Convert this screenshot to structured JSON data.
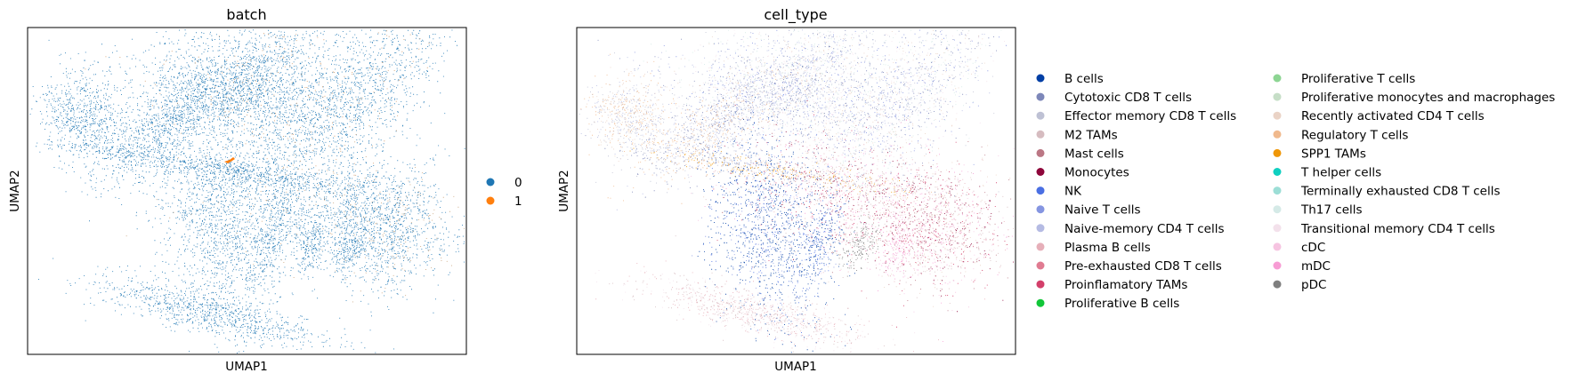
{
  "chart_data": [
    {
      "type": "scatter",
      "title": "batch",
      "xlabel": "UMAP1",
      "ylabel": "UMAP2",
      "grid": false,
      "ticks": false,
      "legend_position": "right",
      "series": [
        {
          "name": "0",
          "color": "#1f77b4"
        },
        {
          "name": "1",
          "color": "#ff7f0e"
        }
      ]
    },
    {
      "type": "scatter",
      "title": "cell_type",
      "xlabel": "UMAP1",
      "ylabel": "UMAP2",
      "grid": false,
      "ticks": false,
      "legend_position": "right",
      "series": [
        {
          "name": "B cells",
          "color": "#023fa5"
        },
        {
          "name": "Cytotoxic CD8 T cells",
          "color": "#7d87b9"
        },
        {
          "name": "Effector memory CD8 T cells",
          "color": "#bec1d4"
        },
        {
          "name": "M2 TAMs",
          "color": "#d6bcc0"
        },
        {
          "name": "Mast cells",
          "color": "#bb7784"
        },
        {
          "name": "Monocytes",
          "color": "#8e063b"
        },
        {
          "name": "NK",
          "color": "#4a6fe3"
        },
        {
          "name": "Naive T cells",
          "color": "#8595e1"
        },
        {
          "name": "Naive-memory CD4 T cells",
          "color": "#b5bbe3"
        },
        {
          "name": "Plasma B cells",
          "color": "#e6afb9"
        },
        {
          "name": "Pre-exhausted CD8 T cells",
          "color": "#e07b91"
        },
        {
          "name": "Proinflamatory TAMs",
          "color": "#d33f6a"
        },
        {
          "name": "Proliferative B cells",
          "color": "#11c638"
        },
        {
          "name": "Proliferative T cells",
          "color": "#8dd593"
        },
        {
          "name": "Proliferative monocytes and macrophages",
          "color": "#c6dec7"
        },
        {
          "name": "Recently activated CD4 T cells",
          "color": "#ead3c6"
        },
        {
          "name": "Regulatory T cells",
          "color": "#f0b98d"
        },
        {
          "name": "SPP1 TAMs",
          "color": "#ef9708"
        },
        {
          "name": "T helper cells",
          "color": "#0fcfc0"
        },
        {
          "name": "Terminally exhausted CD8 T cells",
          "color": "#9cded6"
        },
        {
          "name": "Th17 cells",
          "color": "#d5eae7"
        },
        {
          "name": "Transitional memory CD4 T cells",
          "color": "#f3e1eb"
        },
        {
          "name": "cDC",
          "color": "#f6c4e1"
        },
        {
          "name": "mDC",
          "color": "#f79cd4"
        },
        {
          "name": "pDC",
          "color": "#7f7f7f"
        }
      ]
    }
  ]
}
